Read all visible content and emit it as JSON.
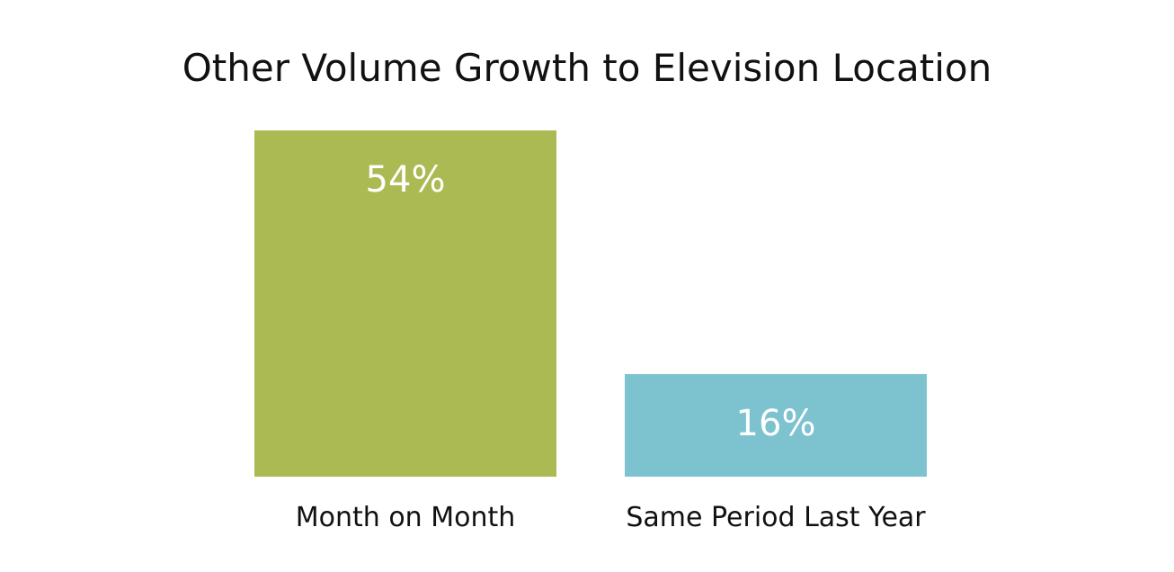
{
  "chart_data": {
    "type": "bar",
    "title": "Other Volume Growth to Elevision Location",
    "categories": [
      "Month on Month",
      "Same Period Last Year"
    ],
    "values": [
      54,
      16
    ],
    "value_labels": [
      "54%",
      "16%"
    ],
    "unit": "%",
    "colors": [
      "#abba52",
      "#7dc3cf"
    ],
    "xlabel": "",
    "ylabel": "",
    "ylim": [
      0,
      54
    ],
    "grid": false,
    "legend": "none"
  }
}
